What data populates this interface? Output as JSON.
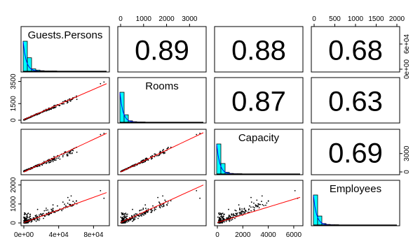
{
  "chart_data": {
    "type": "scatter",
    "title": "",
    "variables": [
      "Guests.Persons",
      "Rooms",
      "Capacity",
      "Employees"
    ],
    "correlations": [
      {
        "row": 0,
        "col": 1,
        "value": "0.89"
      },
      {
        "row": 0,
        "col": 2,
        "value": "0.88"
      },
      {
        "row": 0,
        "col": 3,
        "value": "0.68"
      },
      {
        "row": 1,
        "col": 2,
        "value": "0.87"
      },
      {
        "row": 1,
        "col": 3,
        "value": "0.63"
      },
      {
        "row": 2,
        "col": 3,
        "value": "0.69"
      }
    ],
    "axes": {
      "bottom": [
        {
          "col": 0,
          "ticks": [
            "0e+00",
            "4e+04",
            "8e+04"
          ],
          "tick_values": [
            0,
            40000,
            80000
          ],
          "range": [
            0,
            95000
          ]
        },
        {
          "col": 2,
          "ticks": [
            "0",
            "2000",
            "4000",
            "6000"
          ],
          "tick_values": [
            0,
            2000,
            4000,
            6000
          ],
          "range": [
            0,
            6500
          ]
        }
      ],
      "top": [
        {
          "col": 1,
          "ticks": [
            "0",
            "1000",
            "2000",
            "3000"
          ],
          "tick_values": [
            0,
            1000,
            2000,
            3000
          ],
          "range": [
            0,
            3600
          ]
        },
        {
          "col": 3,
          "ticks": [
            "0",
            "500",
            "1000",
            "1500",
            "2000"
          ],
          "tick_values": [
            0,
            500,
            1000,
            1500,
            2000
          ],
          "range": [
            0,
            2000
          ]
        }
      ],
      "left": [
        {
          "row": 1,
          "ticks": [
            "0",
            "1500",
            "3500"
          ],
          "tick_values": [
            0,
            1500,
            3500
          ],
          "range": [
            0,
            3600
          ]
        },
        {
          "row": 3,
          "ticks": [
            "0",
            "1000",
            "2000"
          ],
          "tick_values": [
            0,
            1000,
            2000
          ],
          "range": [
            0,
            2100
          ]
        }
      ],
      "right": [
        {
          "row": 0,
          "ticks": [
            "0e+00",
            "6e+04"
          ],
          "tick_values": [
            0,
            60000
          ],
          "range": [
            0,
            95000
          ]
        },
        {
          "row": 2,
          "ticks": [
            "0",
            "3000"
          ],
          "tick_values": [
            0,
            3000
          ],
          "range": [
            0,
            6500
          ]
        }
      ]
    },
    "regression_lines": [
      {
        "row": 1,
        "col": 0,
        "from": [
          0,
          50
        ],
        "to": [
          95000,
          3300
        ]
      },
      {
        "row": 2,
        "col": 0,
        "from": [
          0,
          0
        ],
        "to": [
          95000,
          6300
        ]
      },
      {
        "row": 3,
        "col": 0,
        "from": [
          0,
          20
        ],
        "to": [
          95000,
          1600
        ]
      },
      {
        "row": 2,
        "col": 1,
        "from": [
          0,
          0
        ],
        "to": [
          3600,
          6400
        ]
      },
      {
        "row": 3,
        "col": 1,
        "from": [
          0,
          20
        ],
        "to": [
          3600,
          2000
        ]
      },
      {
        "row": 3,
        "col": 2,
        "from": [
          0,
          20
        ],
        "to": [
          6500,
          1350
        ]
      }
    ],
    "histograms": [
      {
        "var": 0,
        "bin_heights": [
          1.0,
          0.45,
          0.08,
          0.04,
          0.02,
          0.01,
          0.01,
          0.01
        ]
      },
      {
        "var": 1,
        "bin_heights": [
          1.0,
          0.25,
          0.05,
          0.02,
          0.01,
          0.01
        ]
      },
      {
        "var": 2,
        "bin_heights": [
          1.0,
          0.35,
          0.06,
          0.02,
          0.01,
          0.01
        ]
      },
      {
        "var": 3,
        "bin_heights": [
          1.0,
          0.3,
          0.05,
          0.02,
          0.01,
          0.01
        ]
      }
    ],
    "colors": {
      "hist_fill": "#00ffff",
      "density_line": "#0000ff",
      "fit_line": "#ff0000",
      "points": "#000000"
    },
    "grid": false,
    "legend": "none"
  }
}
